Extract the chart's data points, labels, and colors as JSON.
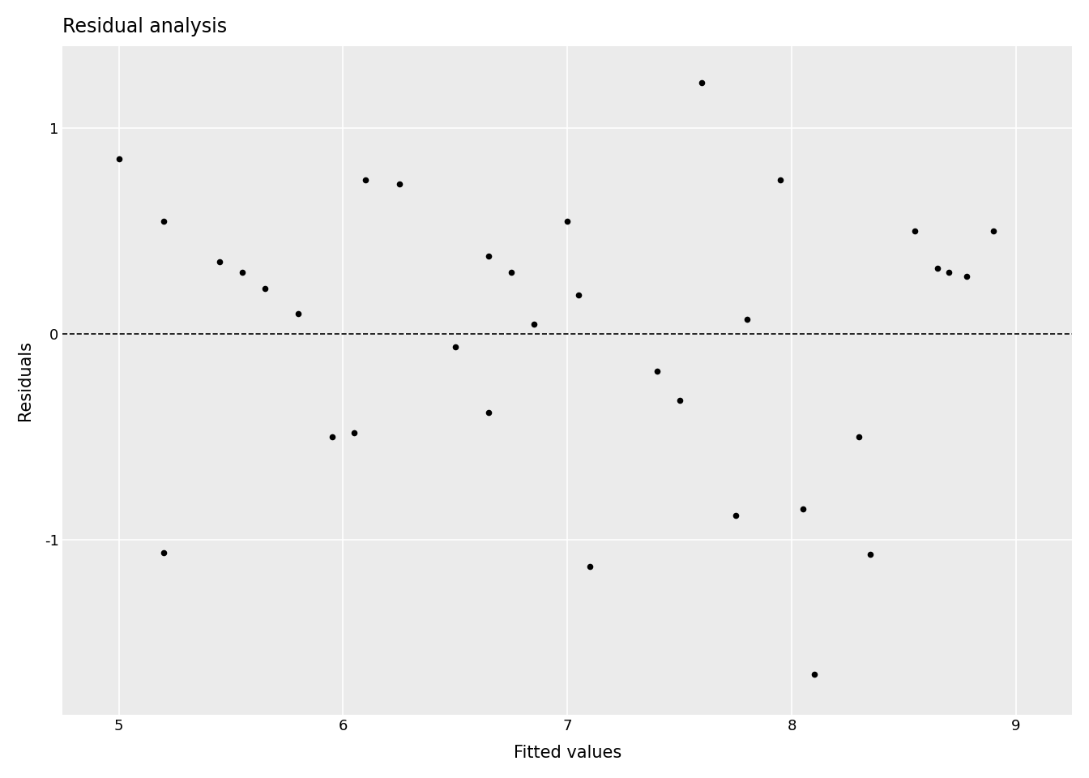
{
  "title": "Residual analysis",
  "xlabel": "Fitted values",
  "ylabel": "Residuals",
  "xlim": [
    4.75,
    9.25
  ],
  "ylim": [
    -1.85,
    1.4
  ],
  "xticks": [
    5,
    6,
    7,
    8,
    9
  ],
  "yticks": [
    -1,
    0,
    1
  ],
  "background_color": "#ffffff",
  "panel_color": "#ebebeb",
  "grid_color": "#ffffff",
  "point_color": "#000000",
  "point_size": 30,
  "dashed_line_y": 0,
  "x": [
    5.0,
    5.2,
    5.45,
    5.55,
    5.65,
    5.8,
    5.2,
    5.95,
    6.05,
    6.1,
    6.25,
    6.5,
    6.65,
    6.65,
    6.75,
    6.85,
    7.0,
    7.05,
    7.1,
    7.4,
    7.5,
    7.6,
    7.75,
    7.8,
    7.95,
    8.05,
    8.1,
    8.3,
    8.35,
    8.55,
    8.65,
    8.7,
    8.78,
    8.9
  ],
  "y": [
    0.85,
    0.55,
    0.35,
    0.3,
    0.22,
    0.1,
    -1.06,
    -0.5,
    -0.48,
    0.75,
    0.73,
    -0.06,
    0.38,
    -0.38,
    0.3,
    0.05,
    0.55,
    0.19,
    -1.13,
    -0.18,
    -0.32,
    1.22,
    -0.88,
    0.07,
    0.75,
    -0.85,
    -1.65,
    -0.5,
    -1.07,
    0.5,
    0.32,
    0.3,
    0.28,
    0.5
  ]
}
